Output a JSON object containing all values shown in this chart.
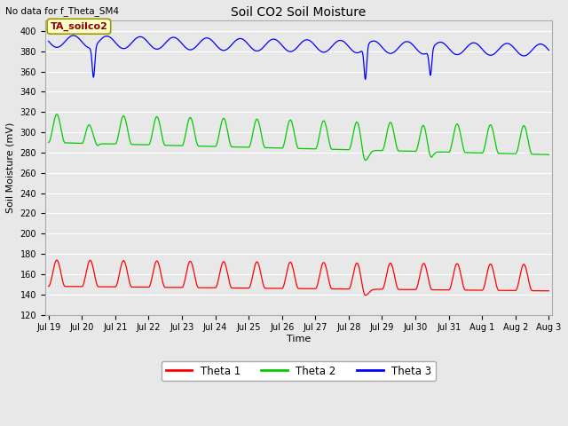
{
  "title": "Soil CO2 Soil Moisture",
  "no_data_text": "No data for f_Theta_SM4",
  "annotation_text": "TA_soilco2",
  "ylabel": "Soil Moisture (mV)",
  "xlabel": "Time",
  "ylim": [
    120,
    410
  ],
  "yticks": [
    120,
    140,
    160,
    180,
    200,
    220,
    240,
    260,
    280,
    300,
    320,
    340,
    360,
    380,
    400
  ],
  "xtick_labels": [
    "Jul 19",
    "Jul 20",
    "Jul 21",
    "Jul 22",
    "Jul 23",
    "Jul 24",
    "Jul 25",
    "Jul 26",
    "Jul 27",
    "Jul 28",
    "Jul 29",
    "Jul 30",
    "Jul 31",
    "Aug 1",
    "Aug 2",
    "Aug 3"
  ],
  "bg_color": "#e8e8e8",
  "line_color_theta1": "#ff0000",
  "line_color_theta2": "#00cc00",
  "line_color_theta3": "#0000ff",
  "legend_labels": [
    "Theta 1",
    "Theta 2",
    "Theta 3"
  ],
  "legend_colors": [
    "#ff0000",
    "#00cc00",
    "#0000ff"
  ]
}
